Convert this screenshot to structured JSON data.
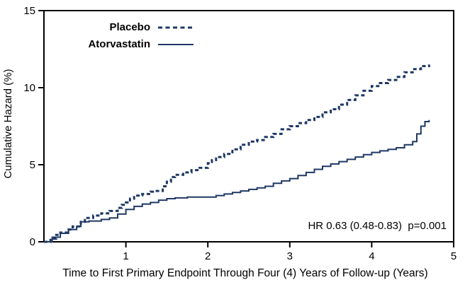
{
  "chart_data": {
    "type": "line",
    "subtype": "step",
    "title": "",
    "xlabel": "Time to First Primary Endpoint Through Four (4) Years of Follow-up (Years)",
    "ylabel": "Cumulative Hazard (%)",
    "xlim": [
      0,
      5
    ],
    "ylim": [
      0,
      15
    ],
    "xticks": [
      1,
      2,
      3,
      4,
      5
    ],
    "yticks": [
      0,
      5,
      10,
      15
    ],
    "grid": false,
    "legend_position": "top-left-inside",
    "annotation": "HR 0.63 (0.48-0.83)  p=0.001",
    "line_color": "#1f3864",
    "axis_color": "#000000",
    "series": [
      {
        "name": "Placebo",
        "style": "dashed",
        "points": [
          [
            0,
            0
          ],
          [
            0.08,
            0.2
          ],
          [
            0.15,
            0.45
          ],
          [
            0.2,
            0.6
          ],
          [
            0.3,
            0.8
          ],
          [
            0.35,
            1.0
          ],
          [
            0.45,
            1.3
          ],
          [
            0.5,
            1.55
          ],
          [
            0.6,
            1.7
          ],
          [
            0.7,
            1.85
          ],
          [
            0.8,
            2.0
          ],
          [
            0.9,
            2.2
          ],
          [
            0.95,
            2.4
          ],
          [
            1.0,
            2.55
          ],
          [
            1.05,
            2.8
          ],
          [
            1.1,
            3.0
          ],
          [
            1.2,
            3.1
          ],
          [
            1.3,
            3.25
          ],
          [
            1.35,
            3.3
          ],
          [
            1.45,
            3.6
          ],
          [
            1.5,
            3.9
          ],
          [
            1.55,
            4.2
          ],
          [
            1.6,
            4.35
          ],
          [
            1.7,
            4.5
          ],
          [
            1.8,
            4.65
          ],
          [
            1.9,
            4.8
          ],
          [
            2.0,
            5.1
          ],
          [
            2.05,
            5.3
          ],
          [
            2.1,
            5.5
          ],
          [
            2.2,
            5.7
          ],
          [
            2.3,
            6.0
          ],
          [
            2.4,
            6.3
          ],
          [
            2.5,
            6.5
          ],
          [
            2.6,
            6.6
          ],
          [
            2.7,
            6.8
          ],
          [
            2.8,
            7.0
          ],
          [
            2.9,
            7.3
          ],
          [
            3.0,
            7.5
          ],
          [
            3.1,
            7.7
          ],
          [
            3.2,
            7.9
          ],
          [
            3.3,
            8.1
          ],
          [
            3.4,
            8.4
          ],
          [
            3.5,
            8.6
          ],
          [
            3.6,
            8.9
          ],
          [
            3.7,
            9.2
          ],
          [
            3.8,
            9.5
          ],
          [
            3.9,
            9.8
          ],
          [
            4.0,
            10.1
          ],
          [
            4.1,
            10.3
          ],
          [
            4.2,
            10.5
          ],
          [
            4.3,
            10.7
          ],
          [
            4.4,
            11.0
          ],
          [
            4.5,
            11.2
          ],
          [
            4.6,
            11.4
          ],
          [
            4.7,
            11.5
          ]
        ]
      },
      {
        "name": "Atorvastatin",
        "style": "solid",
        "points": [
          [
            0,
            0
          ],
          [
            0.1,
            0.3
          ],
          [
            0.2,
            0.55
          ],
          [
            0.3,
            0.8
          ],
          [
            0.4,
            1.0
          ],
          [
            0.45,
            1.3
          ],
          [
            0.55,
            1.35
          ],
          [
            0.7,
            1.45
          ],
          [
            0.8,
            1.55
          ],
          [
            0.9,
            1.8
          ],
          [
            1.0,
            2.1
          ],
          [
            1.1,
            2.3
          ],
          [
            1.2,
            2.45
          ],
          [
            1.3,
            2.55
          ],
          [
            1.4,
            2.7
          ],
          [
            1.5,
            2.8
          ],
          [
            1.6,
            2.85
          ],
          [
            1.75,
            2.9
          ],
          [
            2.0,
            2.9
          ],
          [
            2.1,
            3.0
          ],
          [
            2.2,
            3.1
          ],
          [
            2.3,
            3.2
          ],
          [
            2.4,
            3.3
          ],
          [
            2.5,
            3.4
          ],
          [
            2.6,
            3.5
          ],
          [
            2.7,
            3.6
          ],
          [
            2.8,
            3.8
          ],
          [
            2.9,
            3.95
          ],
          [
            3.0,
            4.1
          ],
          [
            3.1,
            4.3
          ],
          [
            3.2,
            4.5
          ],
          [
            3.3,
            4.7
          ],
          [
            3.4,
            4.9
          ],
          [
            3.5,
            5.05
          ],
          [
            3.6,
            5.2
          ],
          [
            3.7,
            5.35
          ],
          [
            3.8,
            5.5
          ],
          [
            3.9,
            5.65
          ],
          [
            4.0,
            5.8
          ],
          [
            4.1,
            5.9
          ],
          [
            4.2,
            6.0
          ],
          [
            4.3,
            6.1
          ],
          [
            4.4,
            6.3
          ],
          [
            4.5,
            6.5
          ],
          [
            4.55,
            7.0
          ],
          [
            4.6,
            7.5
          ],
          [
            4.65,
            7.8
          ],
          [
            4.7,
            7.9
          ]
        ]
      }
    ]
  }
}
